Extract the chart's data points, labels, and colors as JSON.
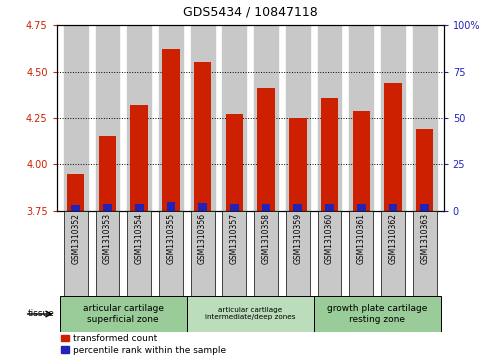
{
  "title": "GDS5434 / 10847118",
  "samples": [
    "GSM1310352",
    "GSM1310353",
    "GSM1310354",
    "GSM1310355",
    "GSM1310356",
    "GSM1310357",
    "GSM1310358",
    "GSM1310359",
    "GSM1310360",
    "GSM1310361",
    "GSM1310362",
    "GSM1310363"
  ],
  "red_values": [
    3.95,
    4.15,
    4.32,
    4.62,
    4.55,
    4.27,
    4.41,
    4.25,
    4.36,
    4.29,
    4.44,
    4.19
  ],
  "blue_heights": [
    0.03,
    0.038,
    0.036,
    0.044,
    0.043,
    0.036,
    0.036,
    0.035,
    0.036,
    0.035,
    0.038,
    0.036
  ],
  "ylim_left": [
    3.75,
    4.75
  ],
  "ylim_right": [
    0,
    100
  ],
  "yticks_left": [
    3.75,
    4.0,
    4.25,
    4.5,
    4.75
  ],
  "yticks_right": [
    0,
    25,
    50,
    75,
    100
  ],
  "red_color": "#cc2000",
  "blue_color": "#2222bb",
  "bar_bg_color": "#c8c8c8",
  "tissue_colors": [
    "#99cc99",
    "#bbddbb",
    "#99cc99"
  ],
  "tissue_labels": [
    "articular cartilage\nsuperficial zone",
    "articular cartilage\nintermediate/deep zones",
    "growth plate cartilage\nresting zone"
  ],
  "tissue_ranges": [
    [
      0,
      4
    ],
    [
      4,
      8
    ],
    [
      8,
      12
    ]
  ],
  "tissue_label": "tissue",
  "legend_red": "transformed count",
  "legend_blue": "percentile rank within the sample",
  "bar_width": 0.55,
  "base_value": 3.75,
  "grid_yticks": [
    4.0,
    4.25,
    4.5
  ],
  "title_fontsize": 9,
  "tick_fontsize": 7,
  "sample_fontsize": 5.5,
  "tissue_fontsize": 6.5,
  "tissue_fontsize_mid": 5.2,
  "legend_fontsize": 6.5
}
